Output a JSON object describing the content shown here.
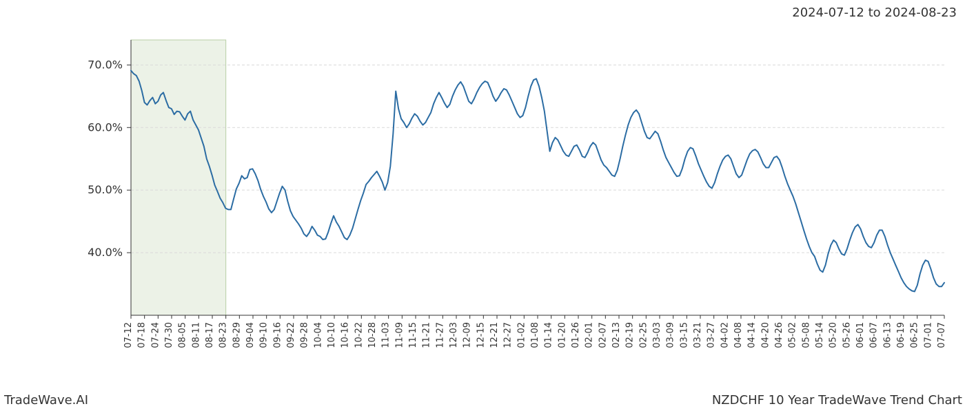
{
  "header": {
    "date_range": "2024-07-12 to 2024-08-23"
  },
  "footer": {
    "left": "TradeWave.AI",
    "right": "NZDCHF 10 Year TradeWave Trend Chart"
  },
  "chart": {
    "type": "line",
    "background_color": "#ffffff",
    "grid_color": "#d9d9d9",
    "axis_color": "#333333",
    "line_color": "#2b6ca3",
    "line_width": 2,
    "highlight_fill": "#dce8d4",
    "highlight_stroke": "#b8cfa6",
    "highlight_opacity": 0.55,
    "tick_fontsize": 13,
    "ylim": [
      30,
      74
    ],
    "yticks": [
      40,
      50,
      60,
      70
    ],
    "ytick_labels": [
      "40.0%",
      "50.0%",
      "60.0%",
      "70.0%"
    ],
    "x_labels": [
      "07-12",
      "07-18",
      "07-24",
      "07-30",
      "08-05",
      "08-11",
      "08-17",
      "08-23",
      "08-29",
      "09-04",
      "09-10",
      "09-16",
      "09-22",
      "09-28",
      "10-04",
      "10-10",
      "10-16",
      "10-22",
      "10-28",
      "11-03",
      "11-09",
      "11-15",
      "11-21",
      "11-27",
      "12-03",
      "12-09",
      "12-15",
      "12-21",
      "12-27",
      "01-02",
      "01-08",
      "01-14",
      "01-20",
      "01-26",
      "02-01",
      "02-07",
      "02-13",
      "02-19",
      "02-25",
      "03-03",
      "03-09",
      "03-15",
      "03-21",
      "03-27",
      "04-02",
      "04-08",
      "04-14",
      "04-20",
      "04-26",
      "05-02",
      "05-08",
      "05-14",
      "05-20",
      "05-26",
      "06-01",
      "06-07",
      "06-13",
      "06-19",
      "06-25",
      "07-01",
      "07-07"
    ],
    "highlight_range": [
      0,
      7
    ],
    "series": [
      69.1,
      68.6,
      68.3,
      67.4,
      65.9,
      64.0,
      63.6,
      64.3,
      64.8,
      63.8,
      64.2,
      65.2,
      65.6,
      64.3,
      63.2,
      63.0,
      62.1,
      62.6,
      62.5,
      61.8,
      61.2,
      62.2,
      62.6,
      61.2,
      60.4,
      59.6,
      58.3,
      57.0,
      55.0,
      53.8,
      52.4,
      50.8,
      49.8,
      48.7,
      48.0,
      47.1,
      46.9,
      46.9,
      48.6,
      50.2,
      51.1,
      52.3,
      51.8,
      52.0,
      53.3,
      53.4,
      52.6,
      51.5,
      50.1,
      49.0,
      48.1,
      47.0,
      46.4,
      46.9,
      48.2,
      49.5,
      50.6,
      50.0,
      48.2,
      46.7,
      45.8,
      45.2,
      44.6,
      43.9,
      43.0,
      42.6,
      43.2,
      44.2,
      43.6,
      42.8,
      42.6,
      42.1,
      42.2,
      43.3,
      44.7,
      45.9,
      44.9,
      44.2,
      43.3,
      42.4,
      42.1,
      42.8,
      43.9,
      45.4,
      46.9,
      48.3,
      49.5,
      50.9,
      51.4,
      52.0,
      52.5,
      53.0,
      52.2,
      51.3,
      50.0,
      51.2,
      53.8,
      59.0,
      65.8,
      63.0,
      61.4,
      60.8,
      60.0,
      60.6,
      61.5,
      62.2,
      61.8,
      61.0,
      60.4,
      60.8,
      61.6,
      62.4,
      63.8,
      64.8,
      65.6,
      64.8,
      63.9,
      63.2,
      63.7,
      65.0,
      66.0,
      66.8,
      67.3,
      66.6,
      65.4,
      64.2,
      63.8,
      64.6,
      65.6,
      66.4,
      67.0,
      67.4,
      67.2,
      66.2,
      65.0,
      64.2,
      64.8,
      65.6,
      66.2,
      66.0,
      65.2,
      64.2,
      63.2,
      62.2,
      61.6,
      61.9,
      63.2,
      65.0,
      66.6,
      67.6,
      67.8,
      66.6,
      64.8,
      62.6,
      59.4,
      56.2,
      57.6,
      58.4,
      58.0,
      57.1,
      56.2,
      55.6,
      55.4,
      56.2,
      57.0,
      57.2,
      56.4,
      55.4,
      55.2,
      56.0,
      57.0,
      57.6,
      57.2,
      56.0,
      54.8,
      54.0,
      53.6,
      53.0,
      52.4,
      52.2,
      53.2,
      55.0,
      57.0,
      58.8,
      60.4,
      61.6,
      62.4,
      62.8,
      62.2,
      60.8,
      59.4,
      58.4,
      58.2,
      58.8,
      59.4,
      59.0,
      57.8,
      56.4,
      55.2,
      54.4,
      53.6,
      52.8,
      52.2,
      52.3,
      53.4,
      55.0,
      56.2,
      56.8,
      56.6,
      55.5,
      54.2,
      53.2,
      52.2,
      51.3,
      50.6,
      50.3,
      51.2,
      52.6,
      53.8,
      54.8,
      55.4,
      55.6,
      55.0,
      53.8,
      52.6,
      52.0,
      52.4,
      53.6,
      54.8,
      55.8,
      56.3,
      56.5,
      56.1,
      55.2,
      54.2,
      53.6,
      53.6,
      54.4,
      55.2,
      55.4,
      54.8,
      53.6,
      52.2,
      51.0,
      50.0,
      49.0,
      47.8,
      46.4,
      45.0,
      43.6,
      42.2,
      41.0,
      40.0,
      39.4,
      38.2,
      37.2,
      36.9,
      38.0,
      39.8,
      41.2,
      42.0,
      41.6,
      40.6,
      39.8,
      39.6,
      40.6,
      42.0,
      43.2,
      44.1,
      44.5,
      43.8,
      42.6,
      41.6,
      41.0,
      40.8,
      41.6,
      42.8,
      43.6,
      43.6,
      42.6,
      41.2,
      40.0,
      39.0,
      38.0,
      37.0,
      36.0,
      35.2,
      34.6,
      34.2,
      33.9,
      33.8,
      34.8,
      36.6,
      38.0,
      38.8,
      38.6,
      37.4,
      36.0,
      35.0,
      34.6,
      34.6,
      35.2
    ]
  }
}
